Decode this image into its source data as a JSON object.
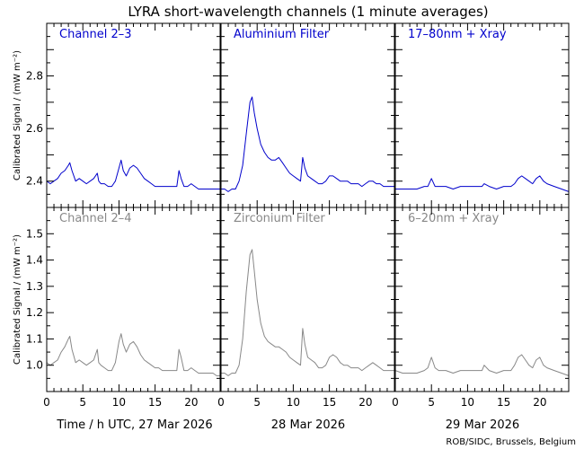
{
  "title": "LYRA short-wavelength channels (1 minute averages)",
  "ylabel": "Calibrated Signal / (mW m⁻²)",
  "credit": "ROB/SIDC, Brussels, Belgium",
  "colors": {
    "top": "#0000cc",
    "bottom": "#888888"
  },
  "days": [
    "Time / h UTC, 27 Mar 2026",
    "28 Mar 2026",
    "29 Mar 2026"
  ],
  "chart_data": {
    "type": "line",
    "x_unit": "h UTC",
    "x_ticks": [
      0,
      5,
      10,
      15,
      20
    ],
    "rows": [
      {
        "ylim": [
          2.3,
          3.0
        ],
        "y_ticks": [
          "2.4",
          "2.6",
          "2.8"
        ],
        "y_tick_values": [
          2.4,
          2.6,
          2.8
        ],
        "panels": [
          {
            "label": "Channel 2–3",
            "x": [
              0,
              0.5,
              1,
              1.5,
              2,
              2.5,
              3,
              3.2,
              3.5,
              4,
              4.5,
              5,
              5.5,
              6,
              6.5,
              7,
              7.2,
              7.5,
              8,
              8.5,
              9,
              9.5,
              10,
              10.3,
              10.6,
              11,
              11.5,
              12,
              12.5,
              13,
              13.5,
              14,
              14.5,
              15,
              15.5,
              16,
              16.5,
              17,
              17.5,
              18,
              18.3,
              18.6,
              19,
              19.5,
              20,
              20.5,
              21,
              21.5,
              22,
              22.5,
              23,
              23.5,
              24
            ],
            "y": [
              2.4,
              2.39,
              2.4,
              2.41,
              2.43,
              2.44,
              2.46,
              2.47,
              2.44,
              2.4,
              2.41,
              2.4,
              2.39,
              2.4,
              2.41,
              2.43,
              2.4,
              2.39,
              2.39,
              2.38,
              2.38,
              2.4,
              2.45,
              2.48,
              2.44,
              2.42,
              2.45,
              2.46,
              2.45,
              2.43,
              2.41,
              2.4,
              2.39,
              2.38,
              2.38,
              2.38,
              2.38,
              2.38,
              2.38,
              2.38,
              2.44,
              2.41,
              2.38,
              2.38,
              2.39,
              2.38,
              2.37,
              2.37,
              2.37,
              2.37,
              2.37,
              2.37,
              2.37
            ]
          },
          {
            "label": "Aluminium Filter",
            "x": [
              0,
              0.5,
              1,
              1.5,
              2,
              2.5,
              3,
              3.5,
              4,
              4.3,
              4.6,
              5,
              5.5,
              6,
              6.5,
              7,
              7.5,
              8,
              8.5,
              9,
              9.5,
              10,
              10.5,
              11,
              11.3,
              11.6,
              12,
              12.5,
              13,
              13.5,
              14,
              14.5,
              15,
              15.5,
              16,
              16.5,
              17,
              17.5,
              18,
              18.5,
              19,
              19.5,
              20,
              20.5,
              21,
              21.5,
              22,
              22.5,
              23,
              23.5,
              24
            ],
            "y": [
              2.37,
              2.37,
              2.36,
              2.37,
              2.37,
              2.4,
              2.46,
              2.58,
              2.7,
              2.72,
              2.66,
              2.6,
              2.54,
              2.51,
              2.49,
              2.48,
              2.48,
              2.49,
              2.47,
              2.45,
              2.43,
              2.42,
              2.41,
              2.4,
              2.49,
              2.45,
              2.42,
              2.41,
              2.4,
              2.39,
              2.39,
              2.4,
              2.42,
              2.42,
              2.41,
              2.4,
              2.4,
              2.4,
              2.39,
              2.39,
              2.39,
              2.38,
              2.39,
              2.4,
              2.4,
              2.39,
              2.39,
              2.38,
              2.38,
              2.38,
              2.38
            ]
          },
          {
            "label": "17–80nm + Xray",
            "x": [
              0,
              1,
              2,
              3,
              4,
              4.5,
              5,
              5.5,
              6,
              7,
              8,
              9,
              10,
              11,
              12,
              12.3,
              13,
              14,
              15,
              16,
              16.5,
              17,
              17.5,
              18,
              18.5,
              19,
              19.5,
              20,
              20.5,
              21,
              22,
              23,
              24
            ],
            "y": [
              2.37,
              2.37,
              2.37,
              2.37,
              2.38,
              2.38,
              2.41,
              2.38,
              2.38,
              2.38,
              2.37,
              2.38,
              2.38,
              2.38,
              2.38,
              2.39,
              2.38,
              2.37,
              2.38,
              2.38,
              2.39,
              2.41,
              2.42,
              2.41,
              2.4,
              2.39,
              2.41,
              2.42,
              2.4,
              2.39,
              2.38,
              2.37,
              2.36
            ]
          }
        ]
      },
      {
        "ylim": [
          0.9,
          1.6
        ],
        "y_ticks": [
          "1.0",
          "1.1",
          "1.2",
          "1.3",
          "1.4",
          "1.5"
        ],
        "y_tick_values": [
          1.0,
          1.1,
          1.2,
          1.3,
          1.4,
          1.5
        ],
        "panels": [
          {
            "label": "Channel 2–4",
            "x": [
              0,
              0.5,
              1,
              1.5,
              2,
              2.5,
              3,
              3.2,
              3.5,
              4,
              4.5,
              5,
              5.5,
              6,
              6.5,
              7,
              7.2,
              7.5,
              8,
              8.5,
              9,
              9.5,
              10,
              10.3,
              10.6,
              11,
              11.5,
              12,
              12.5,
              13,
              13.5,
              14,
              14.5,
              15,
              15.5,
              16,
              16.5,
              17,
              17.5,
              18,
              18.3,
              18.6,
              19,
              19.5,
              20,
              20.5,
              21,
              21.5,
              22,
              22.5,
              23,
              23.5,
              24
            ],
            "y": [
              1.01,
              1.0,
              1.01,
              1.02,
              1.05,
              1.07,
              1.1,
              1.11,
              1.06,
              1.01,
              1.02,
              1.01,
              1.0,
              1.01,
              1.02,
              1.06,
              1.01,
              1.0,
              0.99,
              0.98,
              0.98,
              1.01,
              1.09,
              1.12,
              1.08,
              1.05,
              1.08,
              1.09,
              1.07,
              1.04,
              1.02,
              1.01,
              1.0,
              0.99,
              0.99,
              0.98,
              0.98,
              0.98,
              0.98,
              0.98,
              1.06,
              1.03,
              0.98,
              0.98,
              0.99,
              0.98,
              0.97,
              0.97,
              0.97,
              0.97,
              0.97,
              0.96,
              0.96
            ]
          },
          {
            "label": "Zirconium Filter",
            "x": [
              0,
              0.5,
              1,
              1.5,
              2,
              2.5,
              3,
              3.5,
              4,
              4.3,
              4.6,
              5,
              5.5,
              6,
              6.5,
              7,
              7.5,
              8,
              8.5,
              9,
              9.5,
              10,
              10.5,
              11,
              11.3,
              11.6,
              12,
              12.5,
              13,
              13.5,
              14,
              14.5,
              15,
              15.5,
              16,
              16.5,
              17,
              17.5,
              18,
              18.5,
              19,
              19.5,
              20,
              20.5,
              21,
              21.5,
              22,
              22.5,
              23,
              23.5,
              24
            ],
            "y": [
              0.97,
              0.97,
              0.96,
              0.97,
              0.97,
              1.0,
              1.1,
              1.28,
              1.42,
              1.44,
              1.36,
              1.25,
              1.16,
              1.11,
              1.09,
              1.08,
              1.07,
              1.07,
              1.06,
              1.05,
              1.03,
              1.02,
              1.01,
              1.0,
              1.14,
              1.08,
              1.03,
              1.02,
              1.01,
              0.99,
              0.99,
              1.0,
              1.03,
              1.04,
              1.03,
              1.01,
              1.0,
              1.0,
              0.99,
              0.99,
              0.99,
              0.98,
              0.99,
              1.0,
              1.01,
              1.0,
              0.99,
              0.98,
              0.98,
              0.98,
              0.98
            ]
          },
          {
            "label": "6–20nm + Xray",
            "x": [
              0,
              1,
              2,
              3,
              4,
              4.5,
              5,
              5.5,
              6,
              7,
              8,
              9,
              10,
              11,
              12,
              12.3,
              13,
              14,
              15,
              16,
              16.5,
              17,
              17.5,
              18,
              18.5,
              19,
              19.5,
              20,
              20.5,
              21,
              22,
              23,
              24
            ],
            "y": [
              0.98,
              0.97,
              0.97,
              0.97,
              0.98,
              0.99,
              1.03,
              0.99,
              0.98,
              0.98,
              0.97,
              0.98,
              0.98,
              0.98,
              0.98,
              1.0,
              0.98,
              0.97,
              0.98,
              0.98,
              1.0,
              1.03,
              1.04,
              1.02,
              1.0,
              0.99,
              1.02,
              1.03,
              1.0,
              0.99,
              0.98,
              0.97,
              0.96
            ]
          }
        ]
      }
    ]
  }
}
